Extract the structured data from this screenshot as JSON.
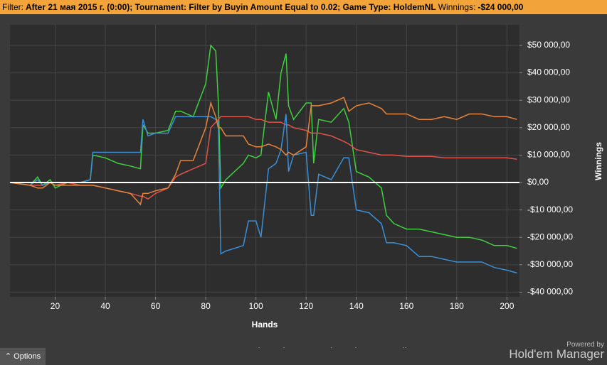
{
  "header": {
    "filter_label": "Filter:",
    "filter_text": "After 21 мая 2015 г. (0:00); Tournament: Filter by Buyin Amount Equal to 0.02; Game Type: HoldemNL",
    "winnings_label": "Winnings:",
    "winnings_value": "-$24 000,00"
  },
  "footer": {
    "options": "Options",
    "powered_by": "Powered by",
    "brand": "Hold'em Manager"
  },
  "chart_data": {
    "type": "line",
    "xlabel": "Hands",
    "ylabel": "Winnings",
    "grid": true,
    "xlim": [
      2,
      205
    ],
    "xticks": [
      20,
      40,
      60,
      80,
      100,
      120,
      140,
      160,
      180,
      200
    ],
    "ylim": [
      -41700,
      57500
    ],
    "yticks": [
      {
        "value": 50000,
        "label": "$50 000,00"
      },
      {
        "value": 40000,
        "label": "$40 000,00"
      },
      {
        "value": 30000,
        "label": "$30 000,00"
      },
      {
        "value": 20000,
        "label": "$20 000,00"
      },
      {
        "value": 10000,
        "label": "$10 000,00"
      },
      {
        "value": 0,
        "label": "$0,00"
      },
      {
        "value": -10000,
        "label": "-$10 000,00"
      },
      {
        "value": -20000,
        "label": "-$20 000,00"
      },
      {
        "value": -30000,
        "label": "-$30 000,00"
      },
      {
        "value": -40000,
        "label": "-$40 000,00"
      }
    ],
    "x": [
      2,
      10,
      13,
      15,
      18,
      20,
      25,
      30,
      34,
      35,
      40,
      45,
      50,
      54,
      55,
      57,
      60,
      65,
      68,
      70,
      75,
      80,
      82,
      84,
      85,
      86,
      88,
      95,
      97,
      100,
      102,
      105,
      108,
      110,
      112,
      113,
      115,
      120,
      122,
      123,
      125,
      130,
      135,
      137,
      140,
      145,
      150,
      152,
      155,
      160,
      165,
      170,
      175,
      180,
      185,
      190,
      195,
      200,
      204
    ],
    "series": [
      {
        "name": "Net Won",
        "color": "#3fcf3f",
        "values": [
          0,
          -1000,
          2000,
          -1000,
          1000,
          -2000,
          0,
          0,
          1000,
          10000,
          9000,
          7000,
          6000,
          5000,
          21000,
          18000,
          18000,
          19000,
          26000,
          26000,
          24000,
          36000,
          50000,
          48000,
          30000,
          -2000,
          1000,
          7000,
          10000,
          9000,
          10000,
          33000,
          23000,
          40000,
          47000,
          28000,
          23000,
          29000,
          29000,
          7000,
          23000,
          22000,
          27000,
          22000,
          4000,
          2000,
          -2000,
          -12000,
          -15000,
          -17000,
          -17000,
          -18000,
          -19000,
          -20000,
          -20000,
          -21000,
          -23000,
          -23000,
          -24000
        ]
      },
      {
        "name": "Non Showdown",
        "color": "#e0524a",
        "values": [
          0,
          -1000,
          -1000,
          -1000,
          0,
          -1000,
          0,
          -1000,
          -1000,
          -1000,
          -2000,
          -3000,
          -4000,
          -5000,
          -5000,
          -6000,
          -4000,
          -2000,
          2000,
          3000,
          5000,
          7000,
          20000,
          22000,
          23000,
          24000,
          24000,
          24000,
          24000,
          23000,
          23000,
          22000,
          22000,
          22000,
          21000,
          21000,
          20000,
          19000,
          18000,
          18000,
          18000,
          17000,
          15000,
          14000,
          12000,
          11000,
          10000,
          10000,
          10000,
          9500,
          9500,
          9500,
          9000,
          9000,
          9000,
          9000,
          9000,
          9000,
          8500
        ]
      },
      {
        "name": "Showdown",
        "color": "#3a8fd6",
        "values": [
          0,
          -1000,
          1000,
          -1000,
          0,
          0,
          0,
          0,
          1000,
          11000,
          11000,
          11000,
          11000,
          11000,
          23000,
          17000,
          18000,
          18000,
          24000,
          24000,
          24000,
          24000,
          24000,
          23000,
          22000,
          -26000,
          -25000,
          -23000,
          -14000,
          -14000,
          -20000,
          5000,
          7000,
          12000,
          25000,
          4000,
          10000,
          11000,
          -12000,
          -12000,
          3000,
          1000,
          9000,
          9000,
          -10000,
          -11000,
          -15000,
          -22000,
          -22000,
          -23000,
          -27000,
          -27000,
          -28000,
          -29000,
          -29000,
          -29000,
          -31000,
          -32000,
          -33000
        ]
      },
      {
        "name": "All-In EV",
        "color": "#e8843a",
        "values": [
          0,
          -1000,
          -2000,
          -2000,
          0,
          -1000,
          -1000,
          -1000,
          -1000,
          -1000,
          -2000,
          -3000,
          -4000,
          -8000,
          -4000,
          -4000,
          -3000,
          -2000,
          3000,
          8000,
          8000,
          20000,
          29000,
          24000,
          20000,
          20000,
          17000,
          17000,
          14000,
          13000,
          13000,
          14000,
          13000,
          12000,
          10000,
          11000,
          10000,
          13000,
          28000,
          28000,
          28000,
          29000,
          31000,
          26000,
          28000,
          29000,
          27000,
          25000,
          25000,
          25000,
          23000,
          23000,
          24000,
          23000,
          25000,
          25000,
          24000,
          24000,
          23000
        ]
      }
    ]
  }
}
